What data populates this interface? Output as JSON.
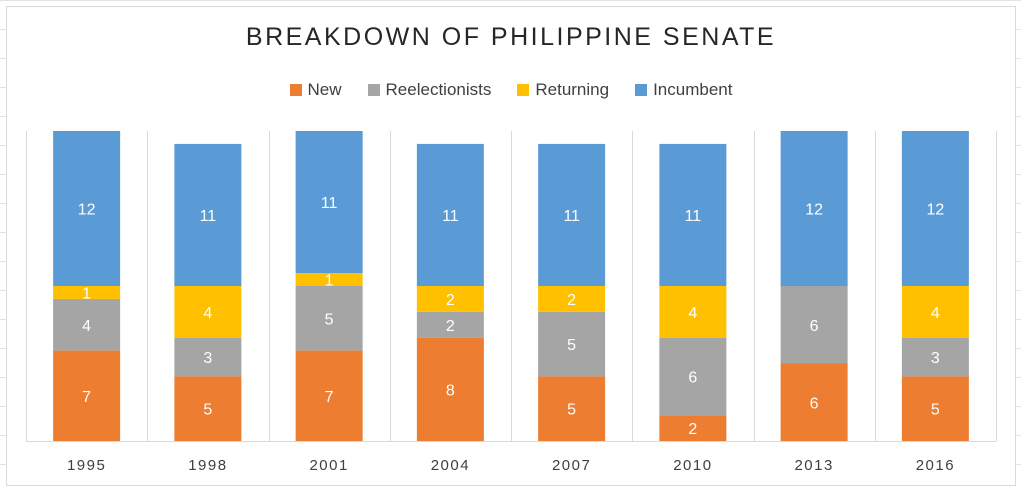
{
  "chart_data": {
    "type": "bar",
    "stacked": true,
    "title": "BREAKDOWN OF PHILIPPINE SENATE",
    "legend_position": "top",
    "categories": [
      "1995",
      "1998",
      "2001",
      "2004",
      "2007",
      "2010",
      "2013",
      "2016"
    ],
    "series": [
      {
        "name": "New",
        "color": "#ED7D31",
        "values": [
          7,
          5,
          7,
          8,
          5,
          2,
          6,
          5
        ]
      },
      {
        "name": "Reelectionists",
        "color": "#A5A5A5",
        "values": [
          4,
          3,
          5,
          2,
          5,
          6,
          6,
          3
        ]
      },
      {
        "name": "Returning",
        "color": "#FFC000",
        "values": [
          1,
          4,
          1,
          2,
          2,
          4,
          0,
          4
        ]
      },
      {
        "name": "Incumbent",
        "color": "#5B9BD5",
        "values": [
          12,
          11,
          11,
          11,
          11,
          11,
          12,
          12
        ]
      }
    ],
    "ylim": [
      0,
      24
    ],
    "grid": "vertical-category-separators",
    "data_labels": true
  }
}
